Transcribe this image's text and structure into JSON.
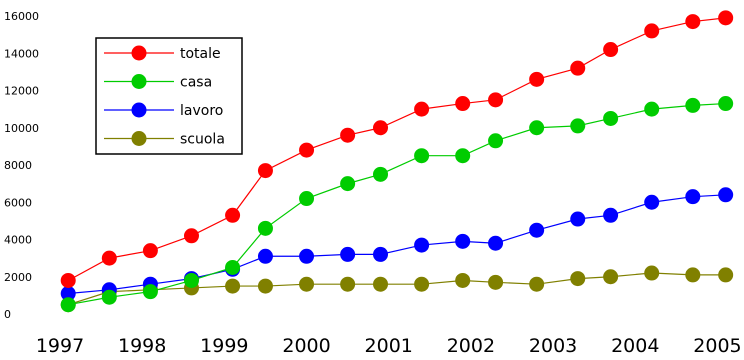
{
  "chart_data": {
    "type": "line",
    "x": [
      1997.1,
      1997.6,
      1998.1,
      1998.6,
      1999.1,
      1999.5,
      2000.0,
      2000.5,
      2000.9,
      2001.4,
      2001.9,
      2002.3,
      2002.8,
      2003.3,
      2003.7,
      2004.2,
      2004.7,
      2005.1
    ],
    "xlim": [
      1997,
      2005.25
    ],
    "x_ticks": [
      "1997",
      "1998",
      "1999",
      "2000",
      "2001",
      "2002",
      "2003",
      "2004",
      "2005"
    ],
    "ylim": [
      0,
      16000
    ],
    "y_ticks": [
      "0",
      "2000",
      "4000",
      "6000",
      "8000",
      "10000",
      "12000",
      "14000",
      "16000"
    ],
    "grid": false,
    "legend_position": "top-left",
    "series": [
      {
        "name": "totale",
        "color": "#ff0000",
        "values": [
          1800,
          3000,
          3400,
          4200,
          5300,
          7700,
          8800,
          9600,
          10000,
          11000,
          11300,
          11500,
          12600,
          13200,
          14200,
          15200,
          15700,
          15900
        ]
      },
      {
        "name": "casa",
        "color": "#00cc00",
        "values": [
          500,
          900,
          1200,
          1800,
          2500,
          4600,
          6200,
          7000,
          7500,
          8500,
          8500,
          9300,
          10000,
          10100,
          10500,
          11000,
          11200,
          11300
        ]
      },
      {
        "name": "lavoro",
        "color": "#0000ff",
        "values": [
          1100,
          1300,
          1600,
          1900,
          2400,
          3100,
          3100,
          3200,
          3200,
          3700,
          3900,
          3800,
          4500,
          5100,
          5300,
          6000,
          6300,
          6400
        ]
      },
      {
        "name": "scuola",
        "color": "#808000",
        "values": [
          500,
          1200,
          1300,
          1400,
          1500,
          1500,
          1600,
          1600,
          1600,
          1600,
          1800,
          1700,
          1600,
          1900,
          2000,
          2200,
          2100,
          2100
        ]
      }
    ]
  }
}
